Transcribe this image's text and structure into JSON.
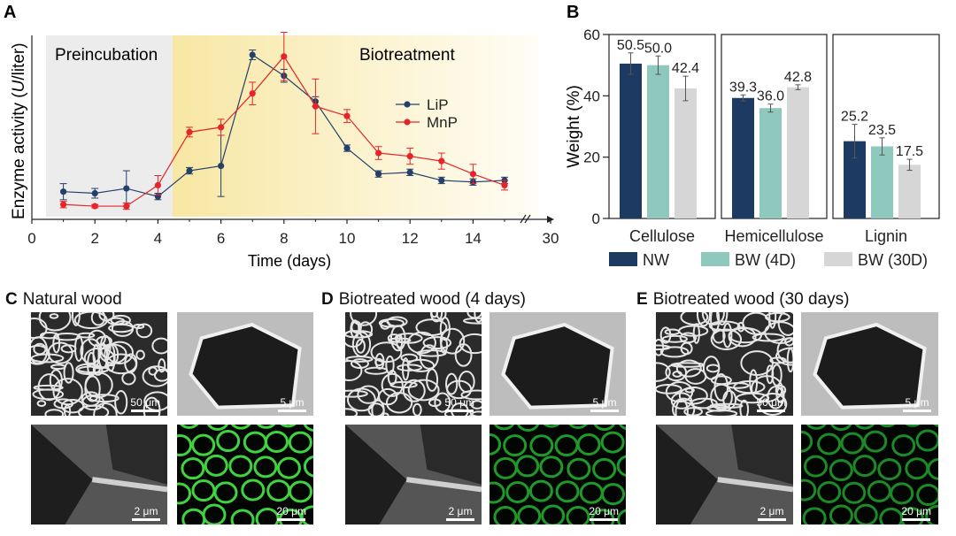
{
  "panelA": {
    "letter": "A",
    "ylabel_prefix": "Enzyme activity (",
    "ylabel_italic": "U",
    "ylabel_suffix": "/liter)",
    "xlabel": "Time (days)",
    "xticks": [
      "0",
      "2",
      "4",
      "6",
      "8",
      "10",
      "12",
      "14",
      "30"
    ],
    "region1": "Preincubation",
    "region2": "Biotreatment",
    "colors": {
      "LiP": "#24406a",
      "MnP": "#e5252a",
      "pre_bg": "#ececec",
      "bio_bg_start": "#f7e7a3",
      "bio_bg_end": "#fffdf6"
    }
  },
  "panelB": {
    "letter": "B",
    "ylabel": "Weight (%)",
    "yticks": [
      "0",
      "20",
      "40",
      "60"
    ],
    "colors": {
      "NW": "#1d3a63",
      "BW4": "#8fc8bd",
      "BW30": "#d6d6d6"
    },
    "legend": [
      "NW",
      "BW (4D)",
      "BW (30D)"
    ]
  },
  "chart_data": [
    {
      "type": "line",
      "title": "",
      "xlabel": "Time (days)",
      "ylabel": "Enzyme activity (U/liter)",
      "xlim": [
        0,
        30
      ],
      "legend_position": "right",
      "series": [
        {
          "name": "LiP",
          "x": [
            1,
            2,
            3,
            4,
            5,
            6,
            7,
            8,
            9,
            10,
            11,
            12,
            13,
            14,
            15
          ],
          "y": [
            0.15,
            0.14,
            0.17,
            0.12,
            0.28,
            0.31,
            1.0,
            0.87,
            0.71,
            0.42,
            0.26,
            0.27,
            0.22,
            0.21,
            0.22
          ],
          "err": [
            0.05,
            0.03,
            0.11,
            0.02,
            0.02,
            0.19,
            0.03,
            0.04,
            0.03,
            0.02,
            0.02,
            0.02,
            0.02,
            0.02,
            0.02
          ]
        },
        {
          "name": "MnP",
          "x": [
            1,
            2,
            3,
            4,
            5,
            6,
            7,
            8,
            9,
            10,
            11,
            12,
            13,
            14,
            15
          ],
          "y": [
            0.07,
            0.06,
            0.06,
            0.19,
            0.52,
            0.55,
            0.76,
            0.99,
            0.68,
            0.62,
            0.39,
            0.37,
            0.34,
            0.26,
            0.19
          ],
          "err": [
            0.02,
            0.01,
            0.02,
            0.06,
            0.03,
            0.05,
            0.07,
            0.15,
            0.17,
            0.04,
            0.04,
            0.05,
            0.05,
            0.06,
            0.03
          ]
        }
      ]
    },
    {
      "type": "bar",
      "title": "",
      "ylabel": "Weight (%)",
      "ylim": [
        0,
        60
      ],
      "categories": [
        "Cellulose",
        "Hemicellulose",
        "Lignin"
      ],
      "legend_position": "bottom",
      "series": [
        {
          "name": "NW",
          "values": [
            50.5,
            39.3,
            25.2
          ],
          "err": [
            3.5,
            1.0,
            5.5
          ]
        },
        {
          "name": "BW (4D)",
          "values": [
            50.0,
            36.0,
            23.5
          ],
          "err": [
            3.0,
            1.3,
            2.8
          ]
        },
        {
          "name": "BW (30D)",
          "values": [
            42.4,
            42.8,
            17.5
          ],
          "err": [
            4.0,
            0.8,
            1.8
          ]
        }
      ],
      "value_labels": [
        [
          "50.5",
          "39.3",
          "25.2"
        ],
        [
          "50.0",
          "36.0",
          "23.5"
        ],
        [
          "42.4",
          "42.8",
          "17.5"
        ]
      ]
    }
  ],
  "panelC": {
    "letter": "C",
    "title": "Natural wood",
    "scales": [
      "50 μm",
      "5 μm",
      "2 μm",
      "20 μm"
    ]
  },
  "panelD": {
    "letter": "D",
    "title": "Biotreated wood (4 days)",
    "scales": [
      "50 μm",
      "5 μm",
      "2 μm",
      "20 μm"
    ]
  },
  "panelE": {
    "letter": "E",
    "title": "Biotreated wood (30 days)",
    "scales": [
      "50 μm",
      "5 μm",
      "2 μm",
      "20 μm"
    ]
  }
}
